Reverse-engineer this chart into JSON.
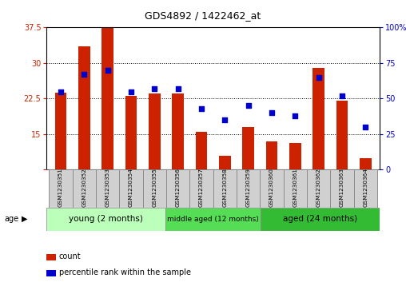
{
  "title": "GDS4892 / 1422462_at",
  "samples": [
    "GSM1230351",
    "GSM1230352",
    "GSM1230353",
    "GSM1230354",
    "GSM1230355",
    "GSM1230356",
    "GSM1230357",
    "GSM1230358",
    "GSM1230359",
    "GSM1230360",
    "GSM1230361",
    "GSM1230362",
    "GSM1230363",
    "GSM1230364"
  ],
  "count_values": [
    23.8,
    33.5,
    37.5,
    23.0,
    23.5,
    23.5,
    15.5,
    10.5,
    16.5,
    13.5,
    13.2,
    29.0,
    22.0,
    10.0
  ],
  "percentile_values": [
    55,
    67,
    70,
    55,
    57,
    57,
    43,
    35,
    45,
    40,
    38,
    65,
    52,
    30
  ],
  "ylim_left": [
    7.5,
    37.5
  ],
  "ylim_right": [
    0,
    100
  ],
  "yticks_left": [
    7.5,
    15.0,
    22.5,
    30.0,
    37.5
  ],
  "yticks_right": [
    0,
    25,
    50,
    75,
    100
  ],
  "bar_color": "#cc2200",
  "dot_color": "#0000cc",
  "background_color": "#ffffff",
  "groups": [
    {
      "label": "young (2 months)",
      "start": 0,
      "end": 5,
      "color": "#bbffbb"
    },
    {
      "label": "middle aged (12 months)",
      "start": 5,
      "end": 9,
      "color": "#55dd55"
    },
    {
      "label": "aged (24 months)",
      "start": 9,
      "end": 14,
      "color": "#33bb33"
    }
  ],
  "legend_items": [
    {
      "label": "count",
      "color": "#cc2200"
    },
    {
      "label": "percentile rank within the sample",
      "color": "#0000cc"
    }
  ],
  "age_label": "age"
}
